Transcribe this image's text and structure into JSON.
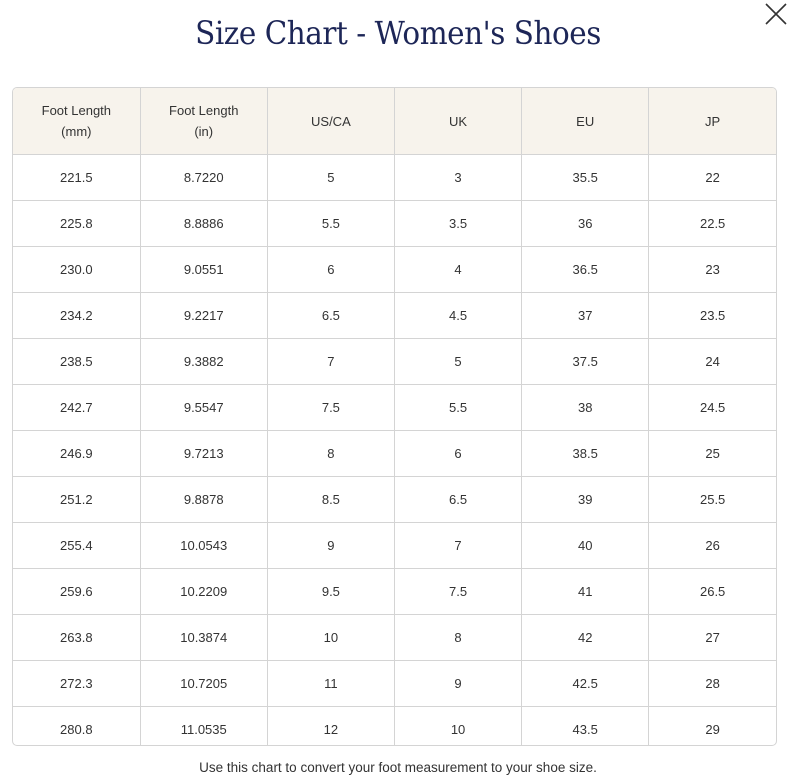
{
  "title": "Size Chart - Women's Shoes",
  "close_icon": "close-x-icon",
  "colors": {
    "title": "#1d2657",
    "header_bg": "#f7f3ec",
    "border": "#d4d4d4"
  },
  "table": {
    "headers": [
      [
        "Foot Length",
        "(mm)"
      ],
      [
        "Foot Length",
        "(in)"
      ],
      [
        "US/CA"
      ],
      [
        "UK"
      ],
      [
        "EU"
      ],
      [
        "JP"
      ]
    ],
    "rows": [
      [
        "221.5",
        "8.7220",
        "5",
        "3",
        "35.5",
        "22"
      ],
      [
        "225.8",
        "8.8886",
        "5.5",
        "3.5",
        "36",
        "22.5"
      ],
      [
        "230.0",
        "9.0551",
        "6",
        "4",
        "36.5",
        "23"
      ],
      [
        "234.2",
        "9.2217",
        "6.5",
        "4.5",
        "37",
        "23.5"
      ],
      [
        "238.5",
        "9.3882",
        "7",
        "5",
        "37.5",
        "24"
      ],
      [
        "242.7",
        "9.5547",
        "7.5",
        "5.5",
        "38",
        "24.5"
      ],
      [
        "246.9",
        "9.7213",
        "8",
        "6",
        "38.5",
        "25"
      ],
      [
        "251.2",
        "9.8878",
        "8.5",
        "6.5",
        "39",
        "25.5"
      ],
      [
        "255.4",
        "10.0543",
        "9",
        "7",
        "40",
        "26"
      ],
      [
        "259.6",
        "10.2209",
        "9.5",
        "7.5",
        "41",
        "26.5"
      ],
      [
        "263.8",
        "10.3874",
        "10",
        "8",
        "42",
        "27"
      ],
      [
        "272.3",
        "10.7205",
        "11",
        "9",
        "42.5",
        "28"
      ],
      [
        "280.8",
        "11.0535",
        "12",
        "10",
        "43.5",
        "29"
      ]
    ]
  },
  "footer_note": "Use this chart to convert your foot measurement to your shoe size."
}
